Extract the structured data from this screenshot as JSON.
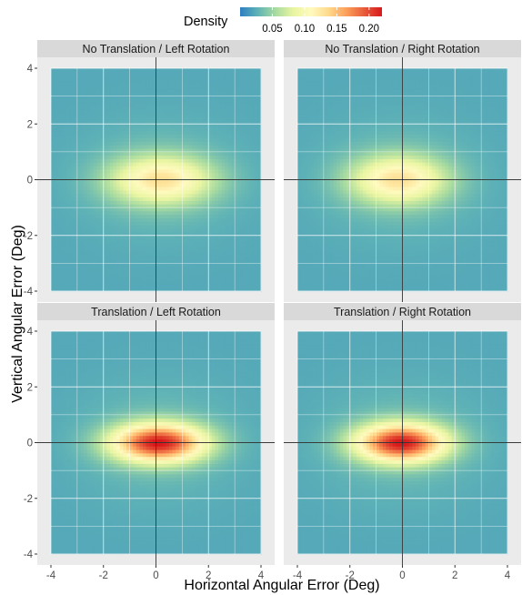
{
  "legend": {
    "title": "Density",
    "ticks": [
      0.05,
      0.1,
      0.15,
      0.2
    ],
    "tick_labels": [
      "0.05",
      "0.10",
      "0.15",
      "0.20"
    ],
    "colorscale": [
      "#2f7fc1",
      "#5fb3b6",
      "#a8dba0",
      "#e9f5a2",
      "#fffabf",
      "#fed98b",
      "#fc9f5b",
      "#e85b3a",
      "#d7191c"
    ],
    "range": [
      0.0,
      0.22
    ]
  },
  "x_axis_title": "Horizontal Angular Error (Deg)",
  "y_axis_title": "Vertical Angular Error (Deg)",
  "chart_data": {
    "type": "heatmap",
    "facet_layout": "2x2",
    "xlabel": "Horizontal Angular Error (Deg)",
    "ylabel": "Vertical Angular Error (Deg)",
    "xlim": [
      -4,
      4
    ],
    "ylim": [
      -4,
      4
    ],
    "xticks": [
      -4,
      -2,
      0,
      2,
      4
    ],
    "yticks": [
      -4,
      -2,
      0,
      2,
      4
    ],
    "grid": true,
    "reference_lines": [
      {
        "axis": "x",
        "value": 0
      },
      {
        "axis": "y",
        "value": 0
      }
    ],
    "legend_placement": "top",
    "panels": [
      {
        "title": "No Translation / Left Rotation",
        "peak_density": 0.12,
        "peak_x": 0.2,
        "peak_y": 0.0,
        "spread_x": 1.7,
        "spread_y": 0.75
      },
      {
        "title": "No Translation / Right Rotation",
        "peak_density": 0.12,
        "peak_x": -0.15,
        "peak_y": 0.0,
        "spread_x": 1.6,
        "spread_y": 0.75
      },
      {
        "title": "Translation / Left Rotation",
        "peak_density": 0.21,
        "peak_x": 0.1,
        "peak_y": 0.0,
        "spread_x": 1.55,
        "spread_y": 0.6
      },
      {
        "title": "Translation / Right Rotation",
        "peak_density": 0.21,
        "peak_x": -0.05,
        "peak_y": 0.0,
        "spread_x": 1.5,
        "spread_y": 0.6
      }
    ]
  }
}
